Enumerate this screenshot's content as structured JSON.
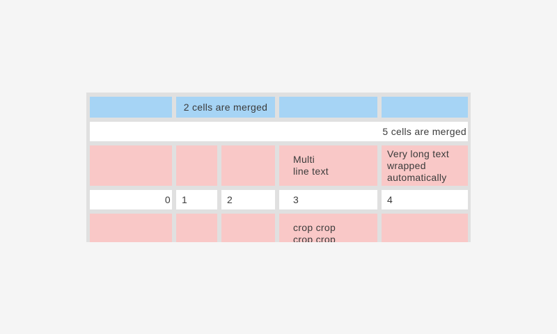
{
  "widget": "table",
  "colors": {
    "page_background": "#f5f5f5",
    "grid_background": "#e0e0e0",
    "header_cell_blue": "#a6d4f5",
    "highlight_cell_pink": "#f9c8c7",
    "plain_cell_white": "#ffffff",
    "text": "#3b3b3b"
  },
  "table": {
    "rows": [
      {
        "style": "blue",
        "cells": [
          {
            "text": ""
          },
          {
            "text": "2 cells are merged",
            "colspan": 2
          },
          {
            "text": ""
          },
          {
            "text": ""
          }
        ]
      },
      {
        "style": "white",
        "cells": [
          {
            "text": "5 cells are merged",
            "colspan": 5,
            "align": "right"
          }
        ]
      },
      {
        "style": "pink",
        "cells": [
          {
            "text": ""
          },
          {
            "text": ""
          },
          {
            "text": ""
          },
          {
            "text": "Multi\nline text"
          },
          {
            "text": "Very long text wrapped automatically"
          }
        ]
      },
      {
        "style": "white",
        "cells": [
          {
            "text": "0",
            "align": "right"
          },
          {
            "text": "1"
          },
          {
            "text": "2"
          },
          {
            "text": "3"
          },
          {
            "text": "4"
          }
        ]
      },
      {
        "style": "pink",
        "cells": [
          {
            "text": ""
          },
          {
            "text": ""
          },
          {
            "text": ""
          },
          {
            "text": "crop crop crop crop"
          },
          {
            "text": ""
          }
        ]
      }
    ]
  }
}
